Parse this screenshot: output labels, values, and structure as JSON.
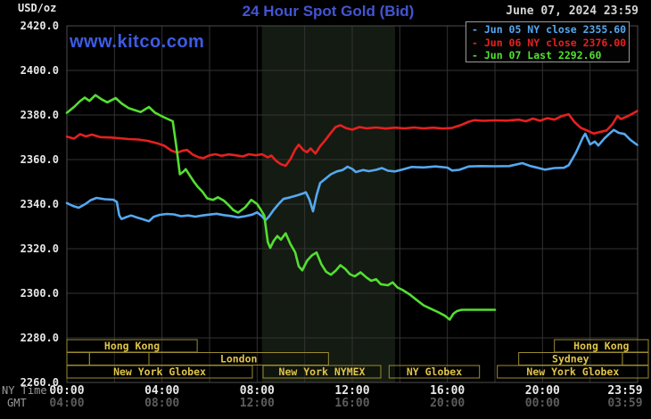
{
  "header": {
    "unit_label": "USD/oz",
    "title": "24 Hour Spot Gold (Bid)",
    "datetime": "June 07, 2024 23:59",
    "watermark": "www.kitco.com"
  },
  "colors": {
    "title": "#4355d2",
    "watermark": "#3c5ce4",
    "date_text": "#d4d4d4",
    "axis_text": "#e8e8e8",
    "dim_text": "#9a9a9a",
    "gmt_value_text": "#5c5c5c",
    "grid": "#333333",
    "plot_border": "#4d4d4d",
    "band": "#141b12",
    "session_border": "#9c8b2e",
    "session_text": "#e0c44a",
    "legend_border": "#999999",
    "blue": "#55a8f0",
    "red": "#e62020",
    "green": "#53df31"
  },
  "legend": {
    "rows": [
      {
        "text": "- Jun 05 NY close 2355.60",
        "color_key": "blue"
      },
      {
        "text": "- Jun 06 NY close 2376.00",
        "color_key": "red"
      },
      {
        "text": "- Jun 07 Last 2292.60",
        "color_key": "green"
      }
    ]
  },
  "axes": {
    "ny_time_label": "NY Time",
    "gmt_label": "GMT",
    "x_ticks": [
      {
        "h": 0,
        "ny": "00:00",
        "gmt": "04:00"
      },
      {
        "h": 4,
        "ny": "04:00",
        "gmt": "08:00"
      },
      {
        "h": 8,
        "ny": "08:00",
        "gmt": "12:00"
      },
      {
        "h": 12,
        "ny": "12:00",
        "gmt": "16:00"
      },
      {
        "h": 16,
        "ny": "16:00",
        "gmt": "20:00"
      },
      {
        "h": 20,
        "ny": "20:00",
        "gmt": "00:00"
      },
      {
        "h": 23.983,
        "ny": "23:59",
        "gmt": "03:59"
      }
    ]
  },
  "sessions": [
    {
      "row": 0,
      "start_h": 0.0,
      "end_h": 5.48,
      "label": "Hong Kong"
    },
    {
      "row": 0,
      "start_h": 20.5,
      "end_h": 24.45,
      "label": "Hong Kong"
    },
    {
      "row": 1,
      "start_h": 0.0,
      "end_h": 0.95,
      "label": ""
    },
    {
      "row": 1,
      "start_h": 0.95,
      "end_h": 3.45,
      "label": ""
    },
    {
      "row": 1,
      "start_h": 3.45,
      "end_h": 11.0,
      "label": "London"
    },
    {
      "row": 1,
      "start_h": 19.0,
      "end_h": 23.36,
      "label": "Sydney"
    },
    {
      "row": 1,
      "start_h": 23.36,
      "end_h": 24.45,
      "label": ""
    },
    {
      "row": 2,
      "start_h": 0.0,
      "end_h": 7.8,
      "label": "New York Globex"
    },
    {
      "row": 2,
      "start_h": 8.25,
      "end_h": 13.2,
      "label": "New York NYMEX"
    },
    {
      "row": 2,
      "start_h": 13.55,
      "end_h": 17.35,
      "label": "NY Globex"
    },
    {
      "row": 2,
      "start_h": 18.1,
      "end_h": 24.45,
      "label": "New York Globex"
    }
  ],
  "chart_data": {
    "type": "line",
    "title": "24 Hour Spot Gold (Bid)",
    "xlabel": "NY Time (hours 00:00-23:59)",
    "ylabel": "USD/oz",
    "ylim": [
      2260,
      2420
    ],
    "y_tick_step": 20,
    "x_hours": [
      0,
      24
    ],
    "x_grid_step_hours": 2,
    "grid": true,
    "legend_position": "top-right",
    "highlight_band_hours": {
      "start_h": 8.2,
      "end_h": 13.8
    },
    "series": [
      {
        "name": "Jun 05 NY close 2355.60",
        "color_key": "blue",
        "points": [
          [
            0,
            2340.5
          ],
          [
            0.25,
            2339.2
          ],
          [
            0.5,
            2338.4
          ],
          [
            0.8,
            2340.2
          ],
          [
            1.0,
            2341.8
          ],
          [
            1.25,
            2342.8
          ],
          [
            1.6,
            2342.2
          ],
          [
            1.95,
            2342.0
          ],
          [
            2.1,
            2341.0
          ],
          [
            2.2,
            2335.0
          ],
          [
            2.3,
            2333.3
          ],
          [
            2.5,
            2334.2
          ],
          [
            2.7,
            2334.9
          ],
          [
            2.95,
            2334.0
          ],
          [
            3.2,
            2333.2
          ],
          [
            3.45,
            2332.3
          ],
          [
            3.65,
            2334.3
          ],
          [
            3.9,
            2335.2
          ],
          [
            4.2,
            2335.6
          ],
          [
            4.5,
            2335.4
          ],
          [
            4.8,
            2334.6
          ],
          [
            5.1,
            2334.9
          ],
          [
            5.4,
            2334.4
          ],
          [
            5.7,
            2334.9
          ],
          [
            6.0,
            2335.3
          ],
          [
            6.3,
            2335.7
          ],
          [
            6.6,
            2335.1
          ],
          [
            6.9,
            2334.7
          ],
          [
            7.2,
            2334.1
          ],
          [
            7.5,
            2334.6
          ],
          [
            7.8,
            2335.3
          ],
          [
            8.0,
            2336.3
          ],
          [
            8.2,
            2334.6
          ],
          [
            8.35,
            2332.8
          ],
          [
            8.5,
            2334.5
          ],
          [
            8.7,
            2337.5
          ],
          [
            8.9,
            2340.0
          ],
          [
            9.1,
            2342.3
          ],
          [
            9.4,
            2343.1
          ],
          [
            9.7,
            2344.0
          ],
          [
            9.9,
            2344.7
          ],
          [
            10.05,
            2345.3
          ],
          [
            10.2,
            2342.0
          ],
          [
            10.35,
            2336.8
          ],
          [
            10.5,
            2344.0
          ],
          [
            10.65,
            2349.5
          ],
          [
            10.85,
            2351.2
          ],
          [
            11.1,
            2353.4
          ],
          [
            11.35,
            2354.7
          ],
          [
            11.6,
            2355.3
          ],
          [
            11.8,
            2356.8
          ],
          [
            12.0,
            2355.8
          ],
          [
            12.15,
            2354.4
          ],
          [
            12.45,
            2355.3
          ],
          [
            12.7,
            2354.8
          ],
          [
            13.0,
            2355.4
          ],
          [
            13.25,
            2356.2
          ],
          [
            13.5,
            2355.0
          ],
          [
            13.8,
            2354.7
          ],
          [
            14.1,
            2355.5
          ],
          [
            14.5,
            2356.7
          ],
          [
            15.0,
            2356.5
          ],
          [
            15.5,
            2356.9
          ],
          [
            16.0,
            2356.4
          ],
          [
            16.2,
            2355.1
          ],
          [
            16.5,
            2355.4
          ],
          [
            16.9,
            2356.9
          ],
          [
            17.4,
            2357.1
          ],
          [
            18.0,
            2357.0
          ],
          [
            18.6,
            2357.1
          ],
          [
            19.15,
            2358.4
          ],
          [
            19.5,
            2357.1
          ],
          [
            19.8,
            2356.3
          ],
          [
            20.1,
            2355.5
          ],
          [
            20.5,
            2356.2
          ],
          [
            20.9,
            2356.3
          ],
          [
            21.1,
            2357.5
          ],
          [
            21.4,
            2363.0
          ],
          [
            21.7,
            2370.0
          ],
          [
            21.8,
            2371.6
          ],
          [
            22.0,
            2366.8
          ],
          [
            22.2,
            2368.1
          ],
          [
            22.35,
            2366.3
          ],
          [
            22.6,
            2369.5
          ],
          [
            22.8,
            2371.5
          ],
          [
            23.0,
            2373.3
          ],
          [
            23.2,
            2372.0
          ],
          [
            23.45,
            2371.5
          ],
          [
            23.7,
            2368.8
          ],
          [
            23.98,
            2366.6
          ]
        ]
      },
      {
        "name": "Jun 06 NY close 2376.00",
        "color_key": "red",
        "points": [
          [
            0,
            2370.3
          ],
          [
            0.3,
            2369.4
          ],
          [
            0.55,
            2371.4
          ],
          [
            0.8,
            2370.4
          ],
          [
            1.05,
            2371.2
          ],
          [
            1.4,
            2370.1
          ],
          [
            1.8,
            2369.9
          ],
          [
            2.2,
            2369.6
          ],
          [
            2.6,
            2369.2
          ],
          [
            3.0,
            2369.0
          ],
          [
            3.4,
            2368.4
          ],
          [
            3.8,
            2367.3
          ],
          [
            4.1,
            2366.2
          ],
          [
            4.4,
            2364.0
          ],
          [
            4.65,
            2363.1
          ],
          [
            4.85,
            2363.9
          ],
          [
            5.05,
            2364.3
          ],
          [
            5.3,
            2362.2
          ],
          [
            5.55,
            2361.0
          ],
          [
            5.75,
            2360.7
          ],
          [
            6.0,
            2361.9
          ],
          [
            6.25,
            2362.4
          ],
          [
            6.5,
            2361.7
          ],
          [
            6.8,
            2362.3
          ],
          [
            7.1,
            2361.9
          ],
          [
            7.4,
            2361.4
          ],
          [
            7.65,
            2362.4
          ],
          [
            7.95,
            2361.9
          ],
          [
            8.2,
            2362.4
          ],
          [
            8.45,
            2361.0
          ],
          [
            8.6,
            2361.8
          ],
          [
            8.8,
            2359.4
          ],
          [
            9.0,
            2357.9
          ],
          [
            9.2,
            2357.2
          ],
          [
            9.4,
            2360.2
          ],
          [
            9.6,
            2364.5
          ],
          [
            9.75,
            2366.7
          ],
          [
            9.95,
            2364.2
          ],
          [
            10.1,
            2363.3
          ],
          [
            10.25,
            2365.0
          ],
          [
            10.45,
            2362.7
          ],
          [
            10.65,
            2366.0
          ],
          [
            10.85,
            2368.5
          ],
          [
            11.05,
            2371.3
          ],
          [
            11.3,
            2374.6
          ],
          [
            11.5,
            2375.4
          ],
          [
            11.75,
            2374.1
          ],
          [
            12.0,
            2373.4
          ],
          [
            12.3,
            2374.6
          ],
          [
            12.6,
            2374.0
          ],
          [
            13.0,
            2374.4
          ],
          [
            13.4,
            2373.9
          ],
          [
            13.8,
            2374.3
          ],
          [
            14.2,
            2374.0
          ],
          [
            14.6,
            2374.4
          ],
          [
            15.0,
            2374.0
          ],
          [
            15.4,
            2374.3
          ],
          [
            15.8,
            2373.9
          ],
          [
            16.2,
            2374.2
          ],
          [
            16.6,
            2375.6
          ],
          [
            16.9,
            2377.0
          ],
          [
            17.15,
            2377.7
          ],
          [
            17.5,
            2377.4
          ],
          [
            18.0,
            2377.6
          ],
          [
            18.5,
            2377.5
          ],
          [
            19.0,
            2377.9
          ],
          [
            19.3,
            2377.2
          ],
          [
            19.6,
            2378.4
          ],
          [
            19.9,
            2377.4
          ],
          [
            20.2,
            2378.6
          ],
          [
            20.5,
            2377.9
          ],
          [
            20.8,
            2379.5
          ],
          [
            21.1,
            2380.3
          ],
          [
            21.35,
            2376.8
          ],
          [
            21.6,
            2374.3
          ],
          [
            21.9,
            2372.9
          ],
          [
            22.15,
            2371.7
          ],
          [
            22.4,
            2372.3
          ],
          [
            22.7,
            2373.1
          ],
          [
            22.95,
            2376.0
          ],
          [
            23.15,
            2379.6
          ],
          [
            23.3,
            2378.2
          ],
          [
            23.5,
            2379.1
          ],
          [
            23.75,
            2380.4
          ],
          [
            23.98,
            2381.8
          ]
        ]
      },
      {
        "name": "Jun 07 Last 2292.60",
        "color_key": "green",
        "points": [
          [
            0,
            2381.0
          ],
          [
            0.3,
            2383.6
          ],
          [
            0.55,
            2386.2
          ],
          [
            0.75,
            2387.8
          ],
          [
            0.95,
            2386.3
          ],
          [
            1.2,
            2388.9
          ],
          [
            1.45,
            2387.1
          ],
          [
            1.7,
            2385.7
          ],
          [
            2.05,
            2387.6
          ],
          [
            2.3,
            2385.2
          ],
          [
            2.6,
            2383.1
          ],
          [
            2.85,
            2382.2
          ],
          [
            3.1,
            2381.3
          ],
          [
            3.45,
            2383.6
          ],
          [
            3.7,
            2381.1
          ],
          [
            4.0,
            2379.4
          ],
          [
            4.2,
            2378.4
          ],
          [
            4.45,
            2377.2
          ],
          [
            4.6,
            2366.0
          ],
          [
            4.75,
            2353.4
          ],
          [
            4.9,
            2354.6
          ],
          [
            5.0,
            2355.7
          ],
          [
            5.2,
            2352.3
          ],
          [
            5.35,
            2349.9
          ],
          [
            5.5,
            2347.8
          ],
          [
            5.7,
            2345.6
          ],
          [
            5.9,
            2342.6
          ],
          [
            6.15,
            2341.9
          ],
          [
            6.35,
            2343.1
          ],
          [
            6.6,
            2341.6
          ],
          [
            6.8,
            2339.6
          ],
          [
            7.0,
            2337.3
          ],
          [
            7.2,
            2336.2
          ],
          [
            7.5,
            2338.6
          ],
          [
            7.75,
            2341.9
          ],
          [
            8.0,
            2340.1
          ],
          [
            8.15,
            2337.6
          ],
          [
            8.3,
            2334.9
          ],
          [
            8.45,
            2323.0
          ],
          [
            8.55,
            2320.4
          ],
          [
            8.7,
            2323.6
          ],
          [
            8.85,
            2325.7
          ],
          [
            9.0,
            2324.1
          ],
          [
            9.2,
            2326.9
          ],
          [
            9.4,
            2322.1
          ],
          [
            9.6,
            2318.4
          ],
          [
            9.75,
            2312.1
          ],
          [
            9.9,
            2310.3
          ],
          [
            10.1,
            2314.6
          ],
          [
            10.3,
            2317.0
          ],
          [
            10.5,
            2318.3
          ],
          [
            10.7,
            2313.1
          ],
          [
            10.9,
            2309.7
          ],
          [
            11.1,
            2308.3
          ],
          [
            11.3,
            2310.1
          ],
          [
            11.5,
            2312.6
          ],
          [
            11.7,
            2311.0
          ],
          [
            11.9,
            2308.6
          ],
          [
            12.1,
            2307.6
          ],
          [
            12.35,
            2309.4
          ],
          [
            12.6,
            2307.1
          ],
          [
            12.8,
            2305.6
          ],
          [
            13.0,
            2306.3
          ],
          [
            13.2,
            2304.1
          ],
          [
            13.5,
            2303.6
          ],
          [
            13.7,
            2304.9
          ],
          [
            13.9,
            2302.6
          ],
          [
            14.1,
            2301.6
          ],
          [
            14.4,
            2299.6
          ],
          [
            14.7,
            2297.1
          ],
          [
            15.0,
            2294.6
          ],
          [
            15.3,
            2293.1
          ],
          [
            15.6,
            2291.6
          ],
          [
            15.9,
            2289.9
          ],
          [
            16.1,
            2288.2
          ],
          [
            16.25,
            2290.8
          ],
          [
            16.4,
            2292.0
          ],
          [
            16.6,
            2292.6
          ],
          [
            18.0,
            2292.6
          ]
        ]
      }
    ]
  }
}
